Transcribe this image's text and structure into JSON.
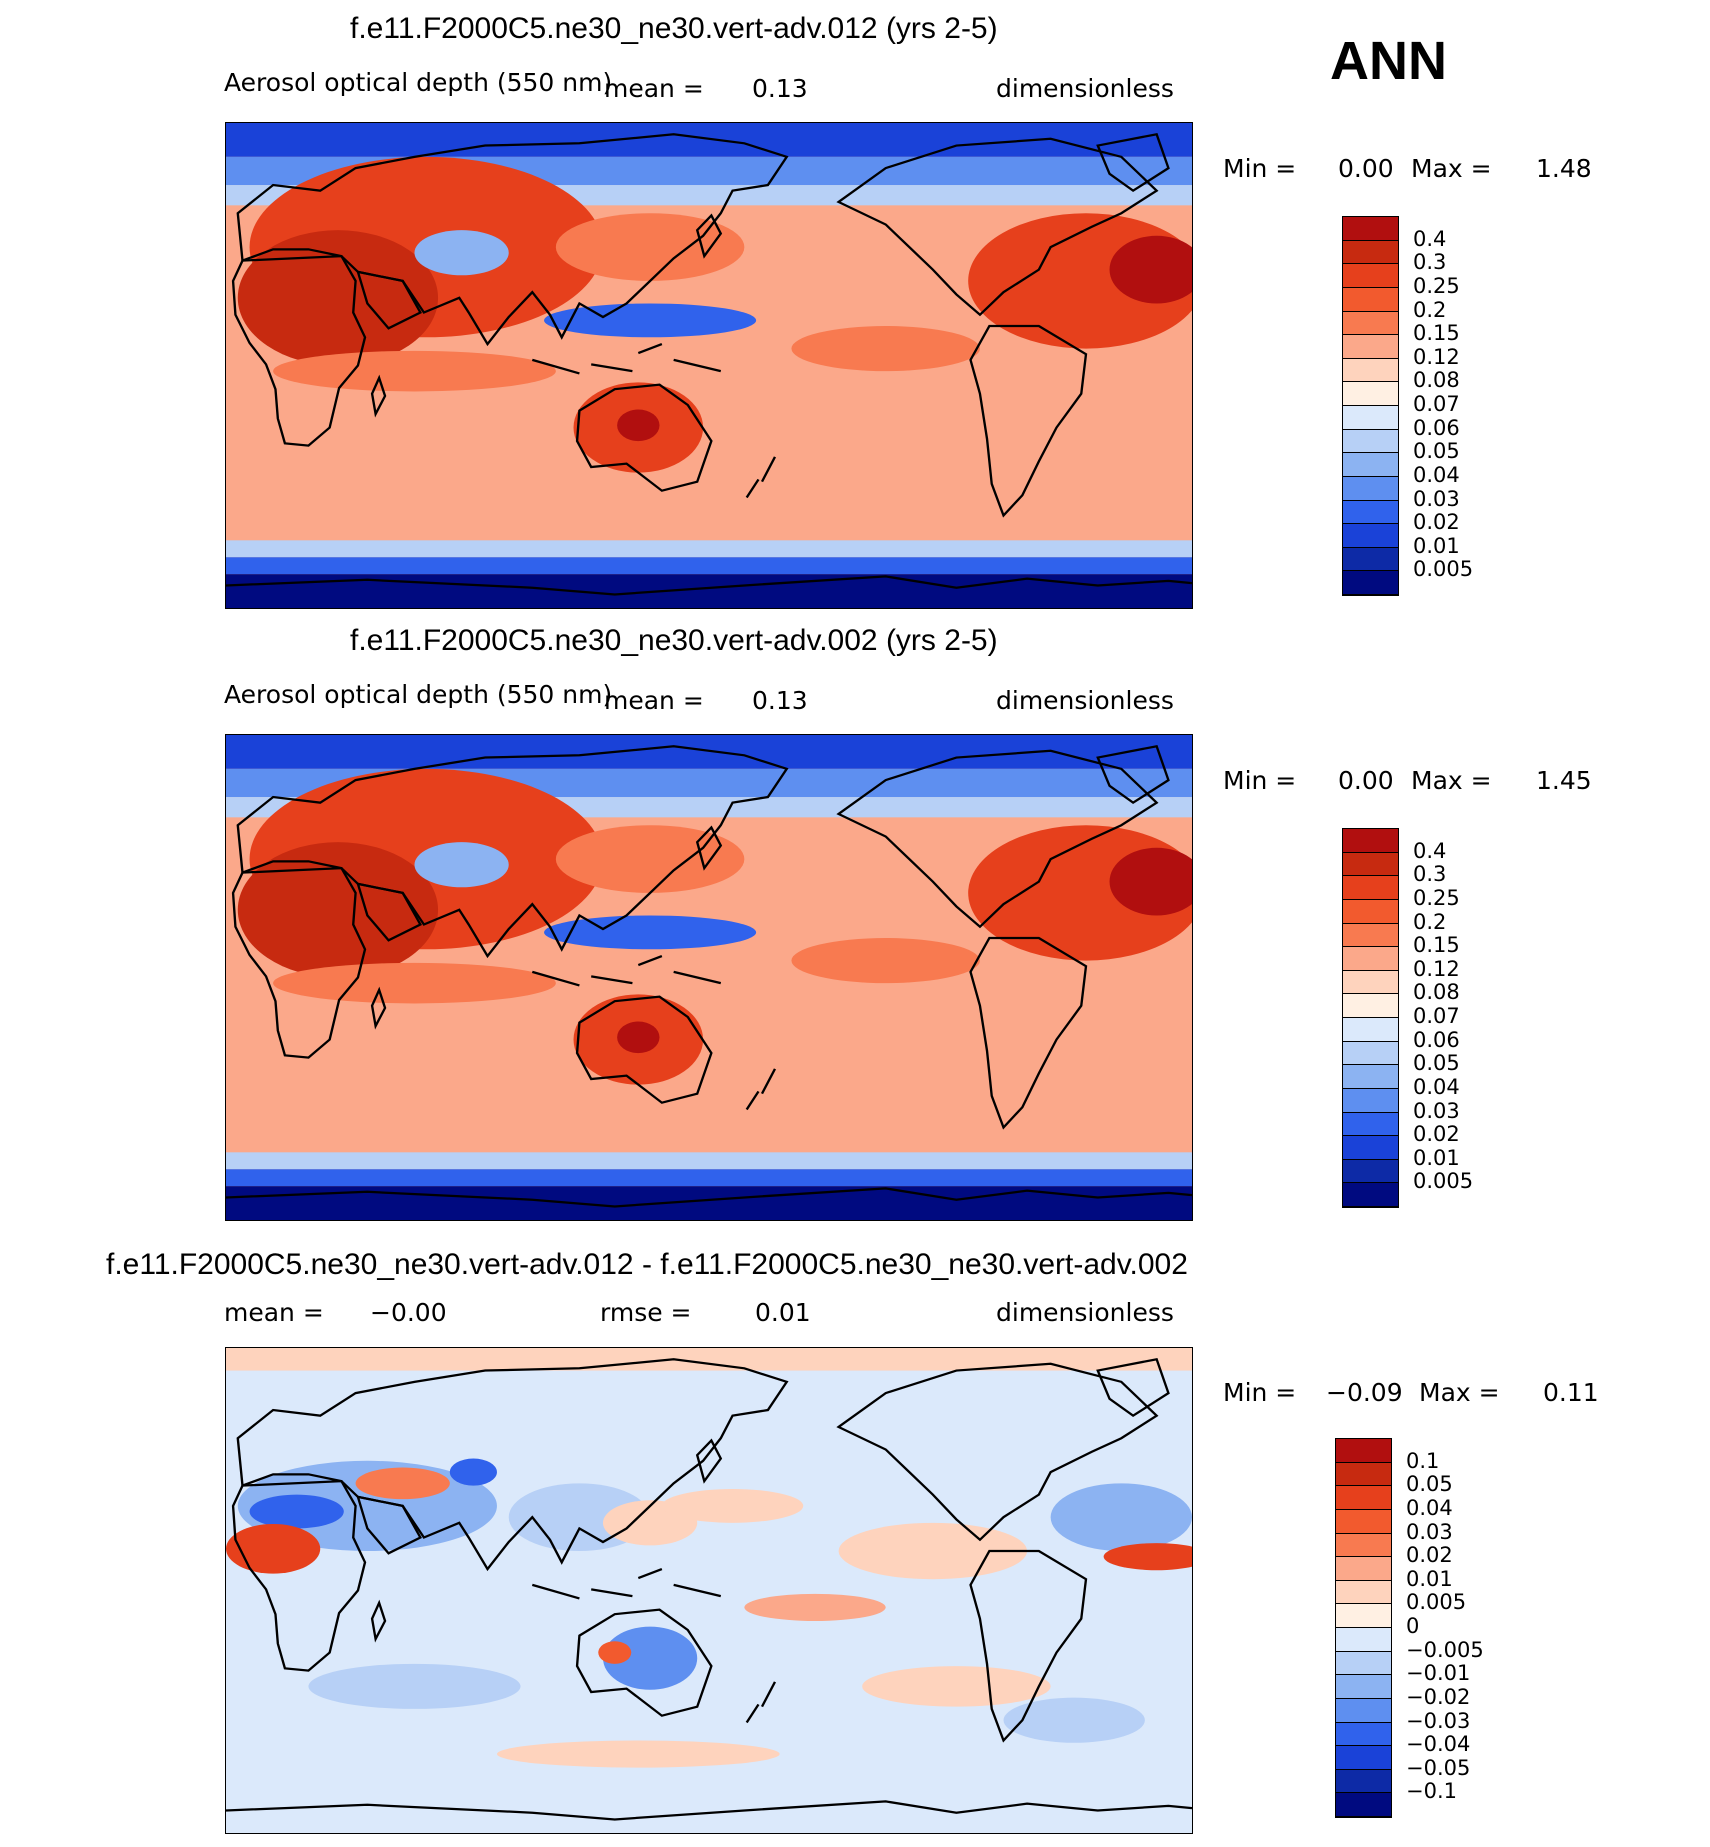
{
  "season": "ANN",
  "colors": {
    "seq": [
      "#b10f0f",
      "#c72a10",
      "#e6401c",
      "#f25a2e",
      "#f87a50",
      "#fba88a",
      "#fed3bd",
      "#fff0e3",
      "#dbe9fb",
      "#b7d0f6",
      "#8cb3f2",
      "#5e8ff0",
      "#3062ec",
      "#1a42d8",
      "#0d2aa6",
      "#000a80"
    ],
    "diff": [
      "#b10f0f",
      "#c72a10",
      "#e6401c",
      "#f25a2e",
      "#f87a50",
      "#fba88a",
      "#fed3bd",
      "#fff0e3",
      "#dbe9fb",
      "#b7d0f6",
      "#8cb3f2",
      "#5e8ff0",
      "#3062ec",
      "#1a42d8",
      "#0d2aa6",
      "#000a80"
    ]
  },
  "panels": [
    {
      "title": "f.e11.F2000C5.ne30_ne30.vert-adv.012 (yrs 2-5)",
      "left_label": "Aerosol optical depth (550 nm)",
      "center_label": "mean =",
      "center_value": "0.13",
      "right_label": "dimensionless",
      "min_label": "Min =",
      "min_value": "0.00",
      "max_label": "Max =",
      "max_value": "1.48",
      "levels": [
        "0.4",
        "0.3",
        "0.25",
        "0.2",
        "0.15",
        "0.12",
        "0.08",
        "0.07",
        "0.06",
        "0.05",
        "0.04",
        "0.03",
        "0.02",
        "0.01",
        "0.005"
      ]
    },
    {
      "title": "f.e11.F2000C5.ne30_ne30.vert-adv.002 (yrs 2-5)",
      "left_label": "Aerosol optical depth (550 nm)",
      "center_label": "mean =",
      "center_value": "0.13",
      "right_label": "dimensionless",
      "min_label": "Min =",
      "min_value": "0.00",
      "max_label": "Max =",
      "max_value": "1.45",
      "levels": [
        "0.4",
        "0.3",
        "0.25",
        "0.2",
        "0.15",
        "0.12",
        "0.08",
        "0.07",
        "0.06",
        "0.05",
        "0.04",
        "0.03",
        "0.02",
        "0.01",
        "0.005"
      ]
    },
    {
      "title": "f.e11.F2000C5.ne30_ne30.vert-adv.012 - f.e11.F2000C5.ne30_ne30.vert-adv.002",
      "left_label": "mean =",
      "left_value": "−0.00",
      "center_label": "rmse =",
      "center_value": "0.01",
      "right_label": "dimensionless",
      "min_label": "Min =",
      "min_value": "−0.09",
      "max_label": "Max =",
      "max_value": "0.11",
      "levels": [
        "0.1",
        "0.05",
        "0.04",
        "0.03",
        "0.02",
        "0.01",
        "0.005",
        "0",
        "−0.005",
        "−0.01",
        "−0.02",
        "−0.03",
        "−0.04",
        "−0.05",
        "−0.1"
      ]
    }
  ]
}
